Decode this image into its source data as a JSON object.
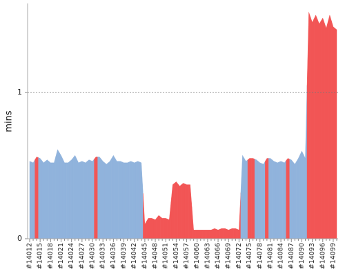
{
  "chart_data": {
    "type": "area",
    "y_label": "mins",
    "categories": [
      "#14012",
      null,
      null,
      "#14015",
      null,
      null,
      "#14018",
      null,
      null,
      "#14021",
      null,
      null,
      "#14024",
      null,
      null,
      "#14027",
      null,
      null,
      "#14030",
      null,
      null,
      "#14033",
      null,
      null,
      "#14036",
      null,
      null,
      "#14039",
      null,
      null,
      "#14042",
      null,
      null,
      "#14045",
      null,
      null,
      "#14048",
      null,
      null,
      "#14051",
      null,
      null,
      "#14054",
      null,
      null,
      "#14057",
      null,
      null,
      "#14060",
      null,
      null,
      "#14063",
      null,
      null,
      "#14066",
      null,
      null,
      "#14069",
      null,
      null,
      "#14072",
      null,
      null,
      "#14075",
      null,
      null,
      "#14078",
      null,
      null,
      "#14081",
      null,
      null,
      "#14084",
      null,
      null,
      "#14087",
      null,
      null,
      "#14090",
      null,
      null,
      "#14093",
      null,
      null,
      "#14096",
      null,
      null,
      "#14099",
      null
    ],
    "values": [
      0.53,
      0.52,
      0.56,
      0.55,
      0.52,
      0.54,
      0.52,
      0.52,
      0.61,
      0.57,
      0.52,
      0.52,
      0.54,
      0.57,
      0.52,
      0.53,
      0.52,
      0.54,
      0.53,
      0.56,
      0.56,
      0.53,
      0.51,
      0.53,
      0.57,
      0.53,
      0.53,
      0.52,
      0.52,
      0.53,
      0.52,
      0.53,
      0.52,
      0.1,
      0.14,
      0.14,
      0.13,
      0.16,
      0.14,
      0.14,
      0.13,
      0.37,
      0.39,
      0.36,
      0.38,
      0.37,
      0.37,
      0.06,
      0.06,
      0.06,
      0.06,
      0.06,
      0.06,
      0.07,
      0.06,
      0.07,
      0.07,
      0.06,
      0.07,
      0.07,
      0.06,
      0.57,
      0.53,
      0.55,
      0.55,
      0.54,
      0.52,
      0.51,
      0.55,
      0.55,
      0.53,
      0.52,
      0.53,
      0.52,
      0.55,
      0.54,
      0.51,
      0.55,
      0.6,
      0.55,
      1.55,
      1.48,
      1.53,
      1.47,
      1.51,
      1.44,
      1.53,
      1.45,
      1.43
    ],
    "point_colors": [
      "#90b3dc",
      "#90b3dc",
      "#f25555",
      "#90b3dc",
      "#90b3dc",
      "#90b3dc",
      "#90b3dc",
      "#90b3dc",
      "#90b3dc",
      "#90b3dc",
      "#90b3dc",
      "#90b3dc",
      "#90b3dc",
      "#90b3dc",
      "#90b3dc",
      "#90b3dc",
      "#90b3dc",
      "#90b3dc",
      "#90b3dc",
      "#f25555",
      "#90b3dc",
      "#90b3dc",
      "#90b3dc",
      "#90b3dc",
      "#90b3dc",
      "#90b3dc",
      "#90b3dc",
      "#90b3dc",
      "#90b3dc",
      "#90b3dc",
      "#90b3dc",
      "#90b3dc",
      "#90b3dc",
      "#f25555",
      "#f25555",
      "#f25555",
      "#f25555",
      "#f25555",
      "#f25555",
      "#f25555",
      "#f25555",
      "#f25555",
      "#f25555",
      "#f25555",
      "#f25555",
      "#f25555",
      "#f25555",
      "#f25555",
      "#f25555",
      "#f25555",
      "#f25555",
      "#f25555",
      "#f25555",
      "#f25555",
      "#f25555",
      "#f25555",
      "#f25555",
      "#f25555",
      "#f25555",
      "#f25555",
      "#f25555",
      "#90b3dc",
      "#90b3dc",
      "#f25555",
      "#f25555",
      "#90b3dc",
      "#90b3dc",
      "#90b3dc",
      "#f25555",
      "#90b3dc",
      "#90b3dc",
      "#90b3dc",
      "#90b3dc",
      "#90b3dc",
      "#f25555",
      "#90b3dc",
      "#90b3dc",
      "#90b3dc",
      "#90b3dc",
      "#90b3dc",
      "#f25555",
      "#f25555",
      "#f25555",
      "#f25555",
      "#f25555",
      "#f25555",
      "#f25555",
      "#f25555",
      "#f25555"
    ],
    "ylim": [
      0,
      1.6
    ],
    "yticks": [
      0,
      1
    ],
    "grid": true
  }
}
